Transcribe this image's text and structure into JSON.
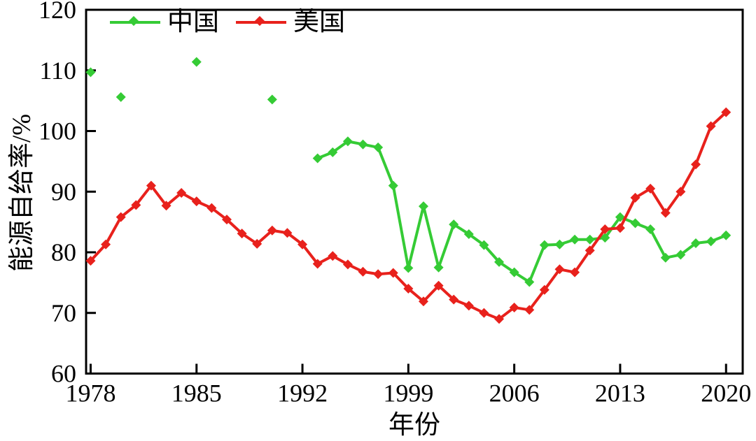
{
  "figure": {
    "xlabel": "年份",
    "ylabel": "能源自给率/%"
  },
  "chart_data": {
    "type": "line",
    "title": "",
    "xlabel": "年份",
    "ylabel": "能源自给率/%",
    "xlim": [
      1977.7,
      2021.1
    ],
    "ylim": [
      60,
      120
    ],
    "x_ticks": [
      1978,
      1985,
      1992,
      1999,
      2006,
      2013,
      2020
    ],
    "y_ticks": [
      60,
      70,
      80,
      90,
      100,
      110,
      120
    ],
    "grid": false,
    "legend_position": "top-inside-left",
    "marker": "diamond",
    "series": [
      {
        "name": "中国",
        "color": "#35cb35",
        "segments": [
          {
            "connected": false,
            "note": "isolated marker-only points",
            "points": [
              [
                1978,
                109.7
              ],
              [
                1980,
                105.6
              ],
              [
                1985,
                111.4
              ],
              [
                1990,
                105.2
              ]
            ]
          },
          {
            "connected": true,
            "points": [
              [
                1993,
                95.5
              ],
              [
                1994,
                96.5
              ],
              [
                1995,
                98.3
              ],
              [
                1996,
                97.8
              ],
              [
                1997,
                97.3
              ],
              [
                1998,
                91.0
              ],
              [
                1999,
                77.4
              ],
              [
                2000,
                87.6
              ],
              [
                2001,
                77.5
              ],
              [
                2002,
                84.6
              ],
              [
                2003,
                83.0
              ],
              [
                2004,
                81.2
              ],
              [
                2005,
                78.4
              ],
              [
                2006,
                76.7
              ],
              [
                2007,
                75.1
              ],
              [
                2008,
                81.2
              ],
              [
                2009,
                81.3
              ],
              [
                2010,
                82.1
              ],
              [
                2011,
                82.1
              ],
              [
                2012,
                82.4
              ],
              [
                2013,
                85.8
              ],
              [
                2014,
                84.8
              ],
              [
                2015,
                83.8
              ],
              [
                2016,
                79.1
              ],
              [
                2017,
                79.6
              ],
              [
                2018,
                81.5
              ],
              [
                2019,
                81.8
              ],
              [
                2020,
                82.8
              ]
            ]
          }
        ]
      },
      {
        "name": "美国",
        "color": "#e8211c",
        "segments": [
          {
            "connected": true,
            "points": [
              [
                1978,
                78.6
              ],
              [
                1979,
                81.3
              ],
              [
                1980,
                85.8
              ],
              [
                1981,
                87.8
              ],
              [
                1982,
                91.0
              ],
              [
                1983,
                87.7
              ],
              [
                1984,
                89.8
              ],
              [
                1985,
                88.4
              ],
              [
                1986,
                87.3
              ],
              [
                1987,
                85.4
              ],
              [
                1988,
                83.1
              ],
              [
                1989,
                81.4
              ],
              [
                1990,
                83.6
              ],
              [
                1991,
                83.2
              ],
              [
                1992,
                81.3
              ],
              [
                1993,
                78.1
              ],
              [
                1994,
                79.4
              ],
              [
                1995,
                78.0
              ],
              [
                1996,
                76.8
              ],
              [
                1997,
                76.4
              ],
              [
                1998,
                76.6
              ],
              [
                1999,
                74.0
              ],
              [
                2000,
                71.9
              ],
              [
                2001,
                74.5
              ],
              [
                2002,
                72.2
              ],
              [
                2003,
                71.2
              ],
              [
                2004,
                70.0
              ],
              [
                2005,
                69.0
              ],
              [
                2006,
                70.9
              ],
              [
                2007,
                70.5
              ],
              [
                2008,
                73.8
              ],
              [
                2009,
                77.2
              ],
              [
                2010,
                76.7
              ],
              [
                2011,
                80.3
              ],
              [
                2012,
                83.8
              ],
              [
                2013,
                84.0
              ],
              [
                2014,
                89.0
              ],
              [
                2015,
                90.5
              ],
              [
                2016,
                86.5
              ],
              [
                2017,
                90.0
              ],
              [
                2018,
                94.5
              ],
              [
                2019,
                100.8
              ],
              [
                2020,
                103.1
              ]
            ]
          }
        ]
      }
    ]
  }
}
